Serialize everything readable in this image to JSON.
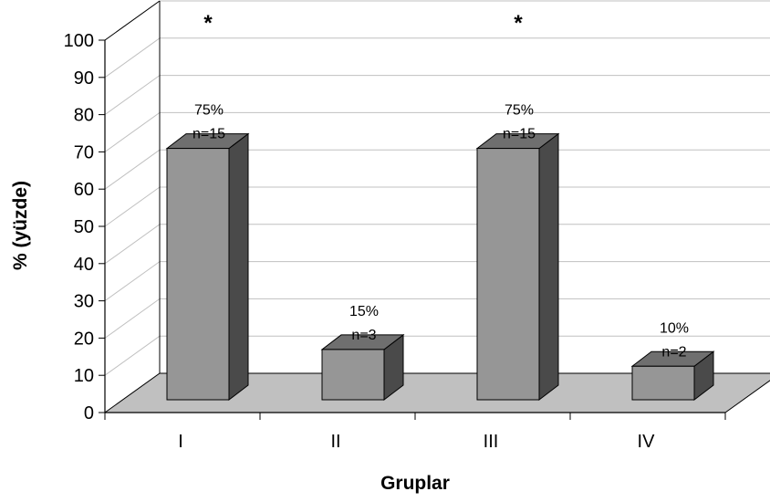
{
  "chart_data": {
    "type": "bar",
    "title": "",
    "xlabel": "Gruplar",
    "ylabel": "% (yüzde)",
    "ylim": [
      0,
      100
    ],
    "yticks": [
      "0",
      "10",
      "20",
      "30",
      "40",
      "50",
      "60",
      "70",
      "80",
      "90",
      "100"
    ],
    "categories": [
      "I",
      "II",
      "III",
      "IV"
    ],
    "values": [
      75,
      15,
      75,
      10
    ],
    "percent_labels": [
      "75%",
      "15%",
      "75%",
      "10%"
    ],
    "n_labels": [
      "n=15",
      "n=3",
      "n=15",
      "n=2"
    ],
    "significance_markers": [
      "*",
      "",
      "*",
      ""
    ],
    "grid": true,
    "three_d": true,
    "colors": {
      "bar_front": "#969696",
      "bar_top": "#6f6f6f",
      "bar_side": "#4a4a4a",
      "floor": "#c0c0c0",
      "grid": "#c0c0c0",
      "axis": "#000000"
    }
  }
}
